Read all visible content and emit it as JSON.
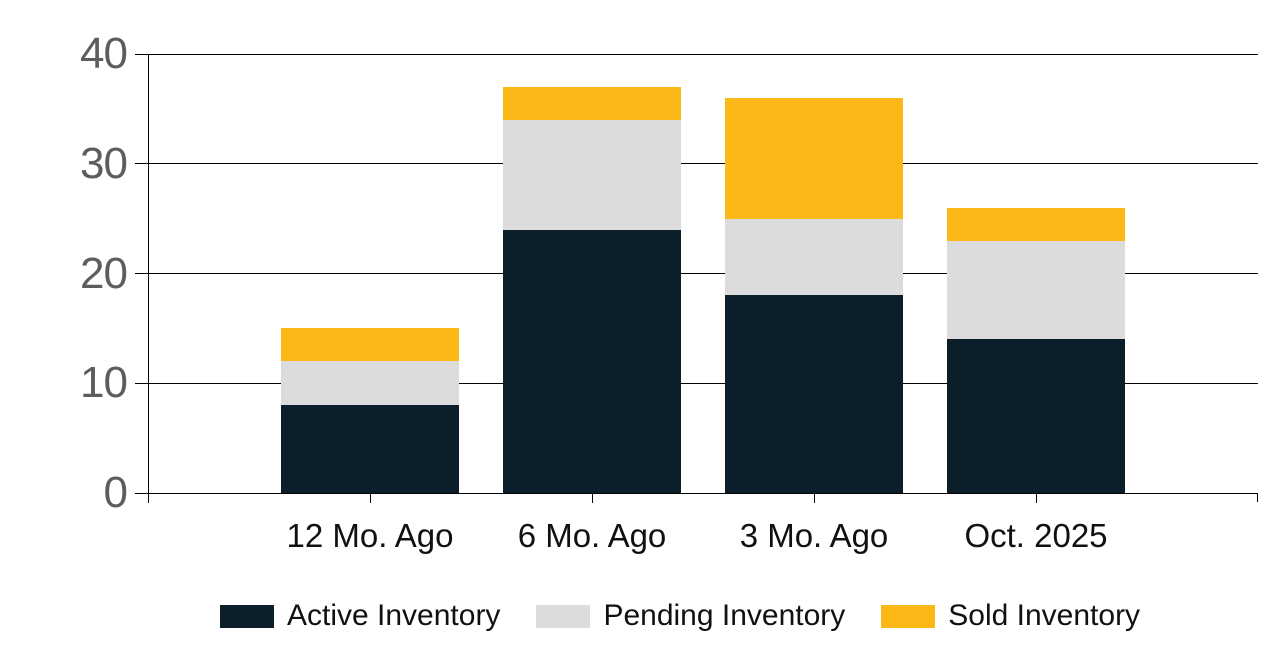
{
  "chart_data": {
    "type": "bar",
    "stacked": true,
    "title": "",
    "xlabel": "",
    "ylabel": "",
    "categories": [
      "12 Mo. Ago",
      "6 Mo. Ago",
      "3 Mo. Ago",
      "Oct. 2025"
    ],
    "series": [
      {
        "name": "Active Inventory",
        "color": "#0c1e2a",
        "values": [
          8,
          24,
          18,
          14
        ]
      },
      {
        "name": "Pending Inventory",
        "color": "#dcdcdc",
        "values": [
          4,
          10,
          7,
          9
        ]
      },
      {
        "name": "Sold Inventory",
        "color": "#fbb817",
        "values": [
          3,
          3,
          11,
          3
        ]
      }
    ],
    "stack_totals": [
      15,
      37,
      36,
      26
    ],
    "ylim": [
      0,
      40
    ],
    "yticks": [
      0,
      10,
      20,
      30,
      40
    ],
    "grid": "horizontal",
    "legend_position": "bottom"
  },
  "colors": {
    "background": "#ffffff",
    "grid_line": "#000000",
    "axis_line": "#000000",
    "y_tick_label": "#5c5d5f",
    "x_tick_label": "#111111",
    "legend_text": "#111111"
  }
}
